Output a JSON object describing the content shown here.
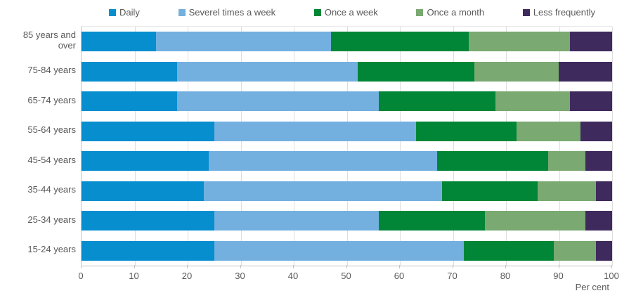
{
  "chart_data": {
    "type": "bar",
    "orientation": "horizontal",
    "stacked": true,
    "title": "",
    "xlabel": "Per cent",
    "xlim": [
      0,
      100
    ],
    "xticks": [
      0,
      10,
      20,
      30,
      40,
      50,
      60,
      70,
      80,
      90,
      100
    ],
    "grid": true,
    "legend_position": "top",
    "categories": [
      "85 years and over",
      "75-84 years",
      "65-74 years",
      "55-64 years",
      "45-54 years",
      "35-44 years",
      "25-34 years",
      "15-24 years"
    ],
    "series": [
      {
        "name": "Daily",
        "color": "#068ecf",
        "values": [
          14,
          18,
          18,
          25,
          24,
          23,
          25,
          25
        ]
      },
      {
        "name": "Severel times a week",
        "color": "#73b0e0",
        "values": [
          33,
          34,
          38,
          38,
          43,
          45,
          31,
          47
        ]
      },
      {
        "name": "Once a week",
        "color": "#008636",
        "values": [
          26,
          22,
          22,
          19,
          21,
          18,
          20,
          17
        ]
      },
      {
        "name": "Once a month",
        "color": "#7aa971",
        "values": [
          19,
          16,
          14,
          12,
          7,
          11,
          19,
          8
        ]
      },
      {
        "name": "Less frequently",
        "color": "#3f2a5e",
        "values": [
          8,
          10,
          8,
          6,
          5,
          3,
          5,
          3
        ]
      }
    ]
  },
  "styles": {
    "text_color": "#595959",
    "grid_color": "#dedede",
    "axis_color": "#c4c4c4",
    "background": "#ffffff"
  }
}
